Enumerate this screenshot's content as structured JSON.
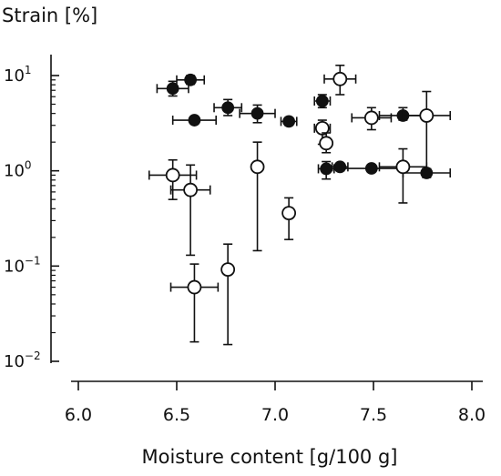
{
  "chart_data": {
    "type": "scatter",
    "title": "",
    "ylabel": "Strain [%]",
    "xlabel": "Moisture content [g/100 g]",
    "xlim": [
      6.0,
      8.0
    ],
    "ylim": [
      0.01,
      15
    ],
    "yscale": "log",
    "x_ticks": [
      "6.0",
      "6.5",
      "7.0",
      "7.5",
      "8.0"
    ],
    "x_tick_values": [
      6.0,
      6.5,
      7.0,
      7.5,
      8.0
    ],
    "y_ticks": [
      {
        "value": 10,
        "base": "10",
        "exp": "1"
      },
      {
        "value": 1,
        "base": "10",
        "exp": "0"
      },
      {
        "value": 0.1,
        "base": "10",
        "exp": "−1"
      },
      {
        "value": 0.01,
        "base": "10",
        "exp": "−2"
      }
    ],
    "grid": false,
    "legend": "none",
    "marker_color": "#111111",
    "series": [
      {
        "marker": "filled",
        "points": [
          {
            "x": 6.48,
            "xerr": 0.08,
            "y": 7.3,
            "ylo": 6.1,
            "yhi": 8.7
          },
          {
            "x": 6.57,
            "xerr": 0.07,
            "y": 9.0,
            "ylo": 8.1,
            "yhi": 10.0
          },
          {
            "x": 6.59,
            "xerr": 0.11,
            "y": 3.4,
            "ylo": 3.2,
            "yhi": 3.6
          },
          {
            "x": 6.76,
            "xerr": 0.07,
            "y": 4.6,
            "ylo": 3.8,
            "yhi": 5.6
          },
          {
            "x": 6.91,
            "xerr": 0.09,
            "y": 4.0,
            "ylo": 3.2,
            "yhi": 4.9
          },
          {
            "x": 7.07,
            "xerr": 0.04,
            "y": 3.3,
            "ylo": 3.0,
            "yhi": 3.6
          },
          {
            "x": 7.24,
            "xerr": 0.04,
            "y": 5.4,
            "ylo": 4.6,
            "yhi": 6.3
          },
          {
            "x": 7.26,
            "xerr": 0.04,
            "y": 1.05,
            "ylo": 0.82,
            "yhi": 1.25
          },
          {
            "x": 7.33,
            "xerr": 0.04,
            "y": 1.1,
            "ylo": 1.0,
            "yhi": 1.2
          },
          {
            "x": 7.49,
            "xerr": 0.16,
            "y": 1.06,
            "ylo": 1.0,
            "yhi": 1.12
          },
          {
            "x": 7.65,
            "xerr": 0.12,
            "y": 3.8,
            "ylo": 3.4,
            "yhi": 4.6
          },
          {
            "x": 7.77,
            "xerr": 0.12,
            "y": 0.95,
            "ylo": 0.85,
            "yhi": 1.05
          }
        ]
      },
      {
        "marker": "open",
        "points": [
          {
            "x": 6.48,
            "xerr": 0.12,
            "y": 0.9,
            "ylo": 0.5,
            "yhi": 1.3
          },
          {
            "x": 6.57,
            "xerr": 0.1,
            "y": 0.63,
            "ylo": 0.13,
            "yhi": 1.15
          },
          {
            "x": 6.59,
            "xerr": 0.12,
            "y": 0.06,
            "ylo": 0.016,
            "yhi": 0.105
          },
          {
            "x": 6.76,
            "xerr": 0.0,
            "y": 0.092,
            "ylo": 0.015,
            "yhi": 0.17
          },
          {
            "x": 6.91,
            "xerr": 0.0,
            "y": 1.1,
            "ylo": 0.145,
            "yhi": 2.0
          },
          {
            "x": 7.07,
            "xerr": 0.0,
            "y": 0.36,
            "ylo": 0.19,
            "yhi": 0.52
          },
          {
            "x": 7.24,
            "xerr": 0.04,
            "y": 2.8,
            "ylo": 1.9,
            "yhi": 3.4
          },
          {
            "x": 7.26,
            "xerr": 0.0,
            "y": 1.95,
            "ylo": 1.55,
            "yhi": 2.5
          },
          {
            "x": 7.33,
            "xerr": 0.08,
            "y": 9.2,
            "ylo": 6.3,
            "yhi": 12.8
          },
          {
            "x": 7.49,
            "xerr": 0.1,
            "y": 3.6,
            "ylo": 2.7,
            "yhi": 4.6
          },
          {
            "x": 7.65,
            "xerr": 0.12,
            "y": 1.1,
            "ylo": 0.46,
            "yhi": 1.7
          },
          {
            "x": 7.77,
            "xerr": 0.12,
            "y": 3.8,
            "ylo": 1.05,
            "yhi": 6.8
          }
        ]
      }
    ]
  }
}
